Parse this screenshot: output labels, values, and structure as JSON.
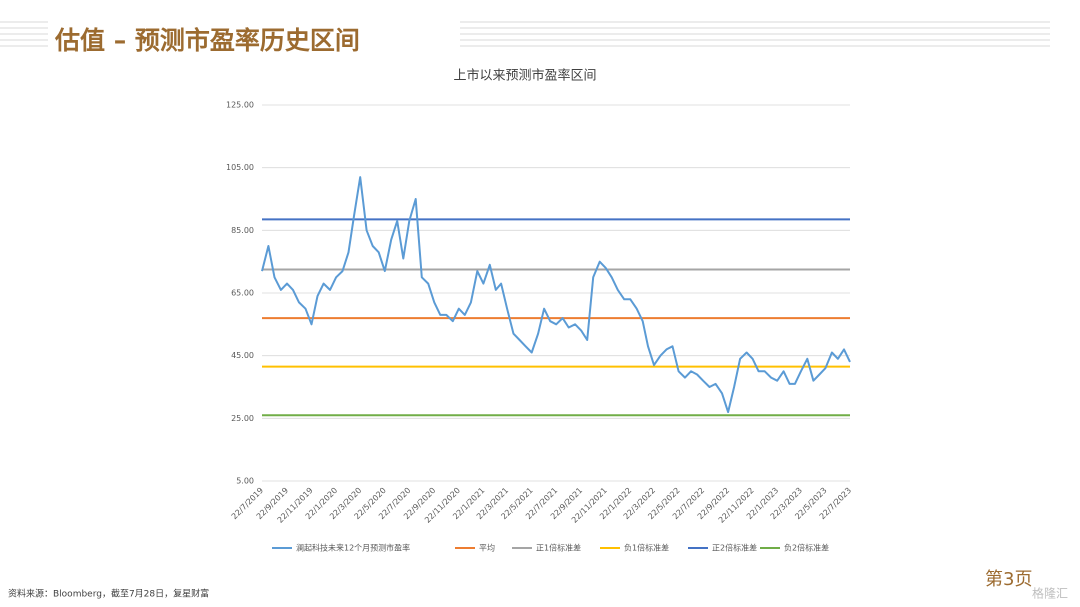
{
  "header": {
    "title": "估值 – 预测市盈率历史区间"
  },
  "chart_data": {
    "type": "line",
    "title": "上市以来预测市盈率区间",
    "x": [
      "22/7/2019",
      "7/8/2019",
      "22/8/2019",
      "7/9/2019",
      "22/9/2019",
      "7/10/2019",
      "22/10/2019",
      "7/11/2019",
      "22/11/2019",
      "7/12/2019",
      "22/12/2019",
      "7/1/2020",
      "22/1/2020",
      "7/2/2020",
      "22/2/2020",
      "7/3/2020",
      "22/3/2020",
      "7/4/2020",
      "22/4/2020",
      "7/5/2020",
      "22/5/2020",
      "7/6/2020",
      "22/6/2020",
      "7/7/2020",
      "22/7/2020",
      "7/8/2020",
      "22/8/2020",
      "7/9/2020",
      "22/9/2020",
      "7/10/2020",
      "22/10/2020",
      "7/11/2020",
      "22/11/2020",
      "7/12/2020",
      "22/12/2020",
      "7/1/2021",
      "22/1/2021",
      "7/2/2021",
      "22/2/2021",
      "7/3/2021",
      "22/3/2021",
      "7/4/2021",
      "22/4/2021",
      "7/5/2021",
      "22/5/2021",
      "7/6/2021",
      "22/6/2021",
      "7/7/2021",
      "22/7/2021",
      "7/8/2021",
      "22/8/2021",
      "7/9/2021",
      "22/9/2021",
      "7/10/2021",
      "22/10/2021",
      "7/11/2021",
      "22/11/2021",
      "7/12/2021",
      "22/12/2021",
      "7/1/2022",
      "22/1/2022",
      "7/2/2022",
      "22/2/2022",
      "7/3/2022",
      "22/3/2022",
      "7/4/2022",
      "22/4/2022",
      "7/5/2022",
      "22/5/2022",
      "7/6/2022",
      "22/6/2022",
      "7/7/2022",
      "22/7/2022",
      "7/8/2022",
      "22/8/2022",
      "7/9/2022",
      "22/9/2022",
      "7/10/2022",
      "22/10/2022",
      "7/11/2022",
      "22/11/2022",
      "7/12/2022",
      "22/12/2022",
      "7/1/2023",
      "22/1/2023",
      "7/2/2023",
      "22/2/2023",
      "7/3/2023",
      "22/3/2023",
      "7/4/2023",
      "22/4/2023",
      "7/5/2023",
      "22/5/2023",
      "7/6/2023",
      "22/6/2023",
      "7/7/2023",
      "22/7/2023"
    ],
    "series": [
      {
        "name": "澜起科技未来12个月预测市盈率",
        "color": "#5b9bd5",
        "values": [
          72,
          80,
          70,
          66,
          68,
          66,
          62,
          60,
          55,
          64,
          68,
          66,
          70,
          72,
          78,
          90,
          102,
          85,
          80,
          78,
          72,
          82,
          88,
          76,
          88,
          95,
          70,
          68,
          62,
          58,
          58,
          56,
          60,
          58,
          62,
          72,
          68,
          74,
          66,
          68,
          60,
          52,
          50,
          48,
          46,
          52,
          60,
          56,
          55,
          57,
          54,
          55,
          53,
          50,
          70,
          75,
          73,
          70,
          66,
          63,
          63,
          60,
          56,
          48,
          42,
          45,
          47,
          48,
          40,
          38,
          40,
          39,
          37,
          35,
          36,
          33,
          27,
          35,
          44,
          46,
          44,
          40,
          40,
          38,
          37,
          40,
          36,
          36,
          40,
          44,
          37,
          39,
          41,
          46,
          44,
          47,
          43
        ]
      }
    ],
    "reference_lines": [
      {
        "name": "平均",
        "color": "#ed7d31",
        "value": 57
      },
      {
        "name": "正1倍标准差",
        "color": "#a5a5a5",
        "value": 72.5
      },
      {
        "name": "负1倍标准差",
        "color": "#ffc000",
        "value": 41.5
      },
      {
        "name": "正2倍标准差",
        "color": "#4472c4",
        "value": 88.5
      },
      {
        "name": "负2倍标准差",
        "color": "#70ad47",
        "value": 26
      }
    ],
    "xlim": [
      "22/7/2019",
      "22/7/2023"
    ],
    "xticks": [
      "22/7/2019",
      "22/9/2019",
      "22/11/2019",
      "22/1/2020",
      "22/3/2020",
      "22/5/2020",
      "22/7/2020",
      "22/9/2020",
      "22/11/2020",
      "22/1/2021",
      "22/3/2021",
      "22/5/2021",
      "22/7/2021",
      "22/9/2021",
      "22/11/2021",
      "22/1/2022",
      "22/3/2022",
      "22/5/2022",
      "22/7/2022",
      "22/9/2022",
      "22/11/2022",
      "22/1/2023",
      "22/3/2023",
      "22/5/2023",
      "22/7/2023"
    ],
    "ylim": [
      5,
      125
    ],
    "yticks": [
      {
        "value": 5,
        "label": "5.00"
      },
      {
        "value": 25,
        "label": "25.00"
      },
      {
        "value": 45,
        "label": "45.00"
      },
      {
        "value": 65,
        "label": "65.00"
      },
      {
        "value": 85,
        "label": "85.00"
      },
      {
        "value": 105,
        "label": "105.00"
      },
      {
        "value": 125,
        "label": "125.00"
      }
    ],
    "grid": true
  },
  "footer": {
    "source": "资料来源：Bloomberg，截至7月28日，复星财富",
    "page": "第3页",
    "watermark": "格隆汇"
  }
}
